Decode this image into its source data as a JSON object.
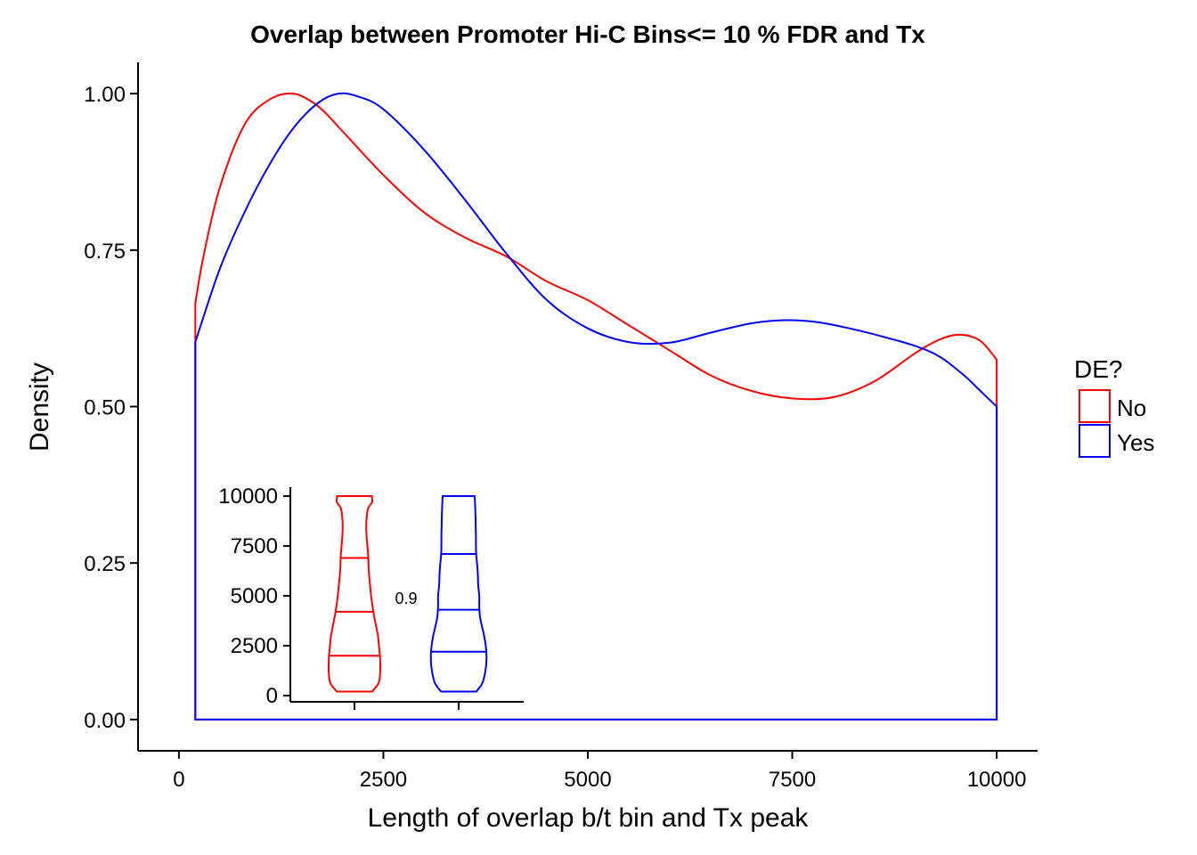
{
  "chart_data": [
    {
      "type": "area",
      "title": "Overlap between Promoter Hi-C Bins<= 10 % FDR and Tx",
      "xlabel": "Length of overlap b/t bin and Tx peak",
      "ylabel": "Density",
      "xlim": [
        -500,
        10500
      ],
      "ylim": [
        -0.05,
        1.05
      ],
      "x_ticks": [
        "0",
        "2500",
        "5000",
        "7500",
        "10000"
      ],
      "y_ticks": [
        "0.00",
        "0.25",
        "0.50",
        "0.75",
        "1.00"
      ],
      "grid": false,
      "legend": {
        "title": "DE?",
        "position": "right",
        "entries": [
          "No",
          "Yes"
        ]
      },
      "series": [
        {
          "name": "No",
          "color": "#ff0000",
          "points": [
            [
              200,
              0.665
            ],
            [
              300,
              0.74
            ],
            [
              500,
              0.85
            ],
            [
              800,
              0.95
            ],
            [
              1100,
              0.99
            ],
            [
              1400,
              1.0
            ],
            [
              1700,
              0.98
            ],
            [
              2000,
              0.94
            ],
            [
              2500,
              0.87
            ],
            [
              3000,
              0.81
            ],
            [
              3500,
              0.77
            ],
            [
              4000,
              0.74
            ],
            [
              4500,
              0.7
            ],
            [
              5000,
              0.67
            ],
            [
              5500,
              0.63
            ],
            [
              6000,
              0.59
            ],
            [
              6500,
              0.55
            ],
            [
              7000,
              0.525
            ],
            [
              7500,
              0.513
            ],
            [
              8000,
              0.515
            ],
            [
              8500,
              0.54
            ],
            [
              9000,
              0.585
            ],
            [
              9300,
              0.607
            ],
            [
              9550,
              0.615
            ],
            [
              9800,
              0.605
            ],
            [
              10000,
              0.575
            ]
          ]
        },
        {
          "name": "Yes",
          "color": "#0000ff",
          "points": [
            [
              200,
              0.603
            ],
            [
              500,
              0.72
            ],
            [
              800,
              0.81
            ],
            [
              1100,
              0.885
            ],
            [
              1400,
              0.945
            ],
            [
              1700,
              0.985
            ],
            [
              1950,
              1.0
            ],
            [
              2200,
              0.995
            ],
            [
              2500,
              0.975
            ],
            [
              3000,
              0.91
            ],
            [
              3500,
              0.83
            ],
            [
              4000,
              0.745
            ],
            [
              4500,
              0.67
            ],
            [
              5000,
              0.625
            ],
            [
              5500,
              0.603
            ],
            [
              6000,
              0.602
            ],
            [
              6500,
              0.618
            ],
            [
              7000,
              0.633
            ],
            [
              7400,
              0.638
            ],
            [
              7800,
              0.635
            ],
            [
              8200,
              0.625
            ],
            [
              8600,
              0.612
            ],
            [
              9000,
              0.597
            ],
            [
              9300,
              0.58
            ],
            [
              9600,
              0.55
            ],
            [
              9800,
              0.525
            ],
            [
              10000,
              0.5
            ]
          ]
        }
      ]
    },
    {
      "type": "violin",
      "ylim": [
        -200,
        10500
      ],
      "y_ticks": [
        "0",
        "2500",
        "5000",
        "7500",
        "10000"
      ],
      "annotation": "0.9",
      "groups": [
        {
          "name": "No",
          "color": "#ff0000",
          "quantiles": [
            2000,
            4200,
            6900
          ],
          "profile": [
            [
              200,
              0.9
            ],
            [
              600,
              1.22
            ],
            [
              1000,
              1.3
            ],
            [
              1500,
              1.32
            ],
            [
              2000,
              1.3
            ],
            [
              2500,
              1.25
            ],
            [
              3000,
              1.2
            ],
            [
              3500,
              1.1
            ],
            [
              4000,
              1.0
            ],
            [
              4500,
              0.92
            ],
            [
              5000,
              0.85
            ],
            [
              5500,
              0.8
            ],
            [
              6000,
              0.75
            ],
            [
              6500,
              0.72
            ],
            [
              7000,
              0.7
            ],
            [
              7500,
              0.66
            ],
            [
              8000,
              0.62
            ],
            [
              8500,
              0.6
            ],
            [
              9000,
              0.63
            ],
            [
              9400,
              0.7
            ],
            [
              9700,
              0.9
            ],
            [
              10000,
              0.88
            ]
          ]
        },
        {
          "name": "Yes",
          "color": "#0000ff",
          "quantiles": [
            2200,
            4300,
            7100
          ],
          "profile": [
            [
              200,
              0.9
            ],
            [
              600,
              1.2
            ],
            [
              1000,
              1.32
            ],
            [
              1500,
              1.4
            ],
            [
              2000,
              1.42
            ],
            [
              2500,
              1.38
            ],
            [
              3000,
              1.3
            ],
            [
              3500,
              1.18
            ],
            [
              4000,
              1.08
            ],
            [
              4500,
              1.05
            ],
            [
              5000,
              1.05
            ],
            [
              5500,
              1.0
            ],
            [
              6000,
              0.98
            ],
            [
              6500,
              0.95
            ],
            [
              7000,
              0.9
            ],
            [
              7500,
              0.88
            ],
            [
              8000,
              0.88
            ],
            [
              8500,
              0.87
            ],
            [
              9000,
              0.86
            ],
            [
              9500,
              0.84
            ],
            [
              10000,
              0.82
            ]
          ]
        }
      ]
    }
  ]
}
